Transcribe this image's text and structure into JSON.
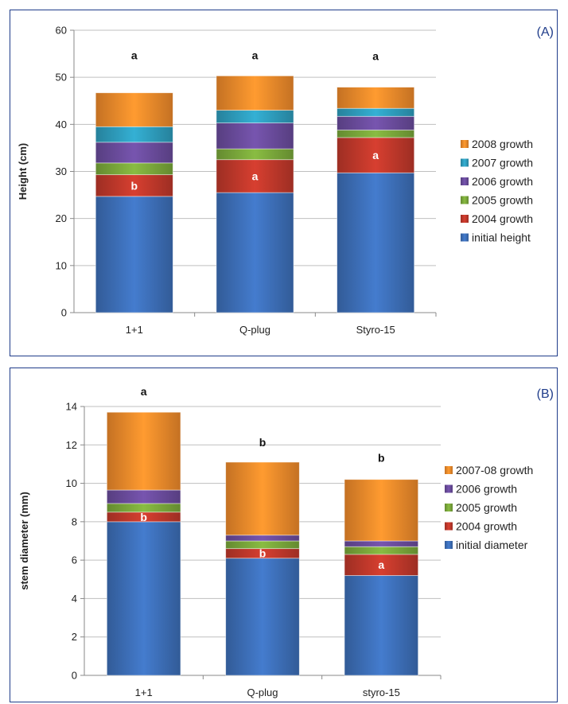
{
  "chart_data": [
    {
      "panel_label": "(A)",
      "type": "bar",
      "stacked": true,
      "ylabel": "Height (cm)",
      "xlabel": "",
      "ylim": [
        0,
        60
      ],
      "yticks": [
        0,
        10,
        20,
        30,
        40,
        50,
        60
      ],
      "grid": true,
      "legend_position": "right",
      "categories": [
        "1+1",
        "Q-plug",
        "Styro-15"
      ],
      "series": [
        {
          "name": "initial height",
          "color": "#3d6fb8",
          "values": [
            24.7,
            25.5,
            29.7
          ]
        },
        {
          "name": "2004 growth",
          "color": "#c0382b",
          "values": [
            4.6,
            7.0,
            7.5
          ]
        },
        {
          "name": "2005 growth",
          "color": "#7aa83b",
          "values": [
            2.5,
            2.3,
            1.6
          ]
        },
        {
          "name": "2006 growth",
          "color": "#6a4c9c",
          "values": [
            4.4,
            5.5,
            2.9
          ]
        },
        {
          "name": "2007 growth",
          "color": "#2e9dbd",
          "values": [
            3.3,
            2.7,
            1.7
          ]
        },
        {
          "name": "2008 growth",
          "color": "#ef8a2b",
          "values": [
            7.2,
            7.3,
            4.5
          ]
        }
      ],
      "top_letters": [
        "a",
        "a",
        "a"
      ],
      "inner_letters": [
        {
          "category": "1+1",
          "series": "2004 growth",
          "text": "b"
        },
        {
          "category": "Q-plug",
          "series": "2004 growth",
          "text": "a"
        },
        {
          "category": "Styro-15",
          "series": "2004 growth",
          "text": "a"
        }
      ]
    },
    {
      "panel_label": "(B)",
      "type": "bar",
      "stacked": true,
      "ylabel": "stem diameter (mm)",
      "xlabel": "",
      "ylim": [
        0,
        14
      ],
      "yticks": [
        0,
        2,
        4,
        6,
        8,
        10,
        12,
        14
      ],
      "grid": true,
      "legend_position": "right",
      "categories": [
        "1+1",
        "Q-plug",
        "styro-15"
      ],
      "series": [
        {
          "name": "initial diameter",
          "color": "#3d6fb8",
          "values": [
            8.0,
            6.1,
            5.2
          ]
        },
        {
          "name": "2004 growth",
          "color": "#c0382b",
          "values": [
            0.5,
            0.5,
            1.1
          ]
        },
        {
          "name": "2005 growth",
          "color": "#7aa83b",
          "values": [
            0.45,
            0.4,
            0.4
          ]
        },
        {
          "name": "2006 growth",
          "color": "#6a4c9c",
          "values": [
            0.7,
            0.3,
            0.3
          ]
        },
        {
          "name": "2007-08 growth",
          "color": "#ef8a2b",
          "values": [
            4.05,
            3.8,
            3.2
          ]
        }
      ],
      "top_letters": [
        "a",
        "b",
        "b"
      ],
      "inner_letters": [
        {
          "category": "1+1",
          "series": "2004 growth",
          "text": "b"
        },
        {
          "category": "Q-plug",
          "series": "2004 growth",
          "text": "b"
        },
        {
          "category": "styro-15",
          "series": "2004 growth",
          "text": "a"
        }
      ]
    }
  ]
}
